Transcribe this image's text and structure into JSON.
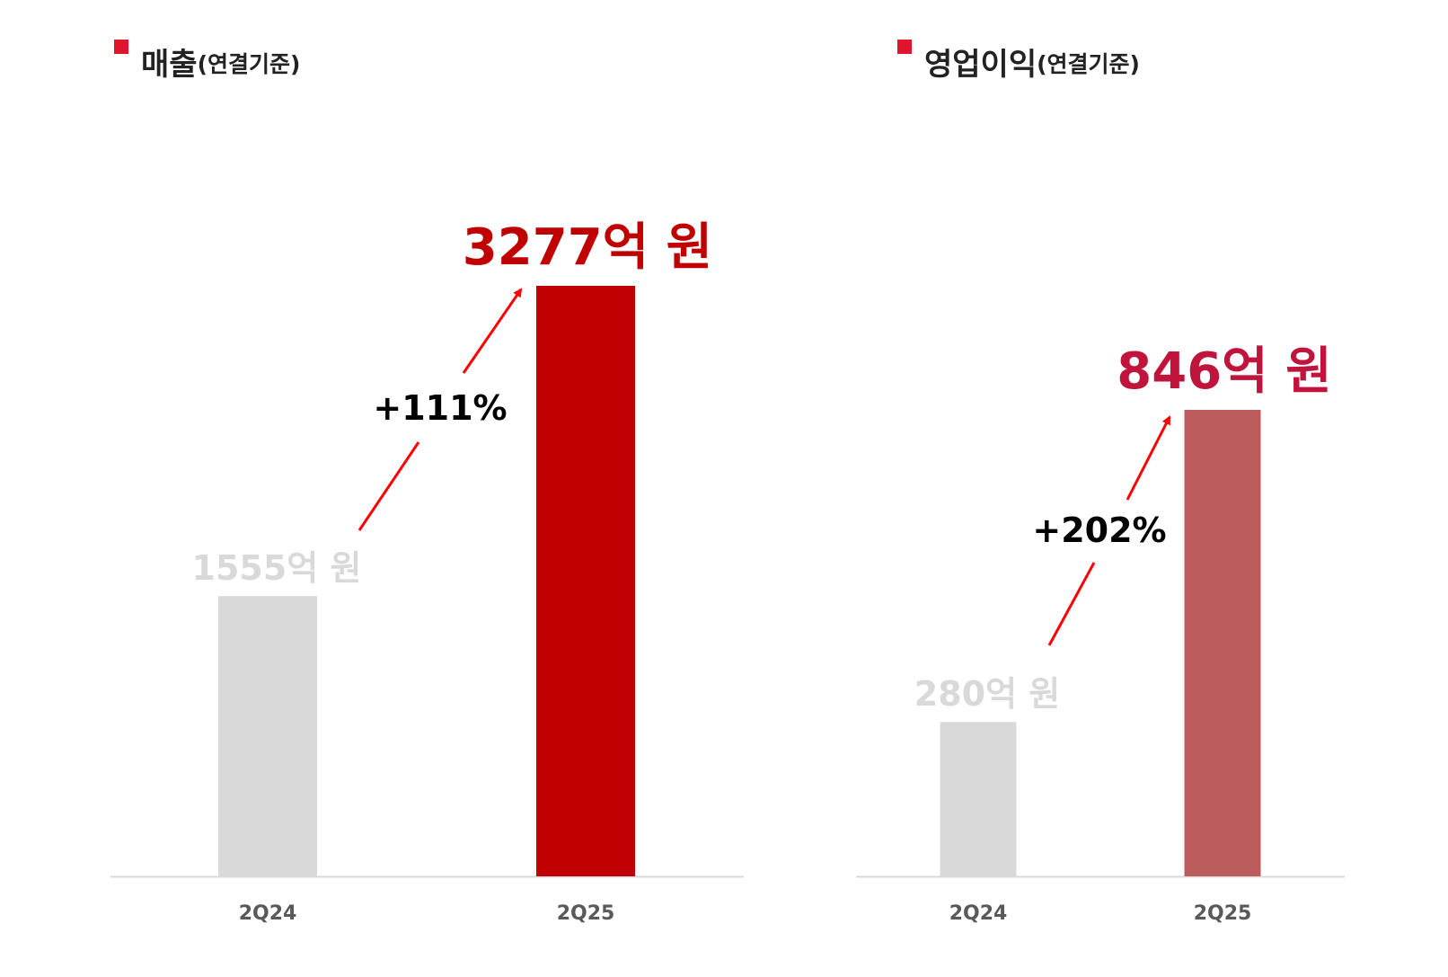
{
  "chart_data": [
    {
      "type": "bar",
      "title": "매출",
      "subtitle": "(연결기준)",
      "categories": [
        "2Q24",
        "2Q25"
      ],
      "values": [
        1555,
        3277
      ],
      "value_labels": [
        "1555억 원",
        "3277억 원"
      ],
      "change_label": "+111%",
      "bar_colors": [
        "#d9d9d9",
        "#c00000"
      ],
      "value_label_colors": [
        "#d9d9d9",
        "#c00000"
      ],
      "ylim": [
        0,
        3277
      ],
      "grid": false,
      "legend": "none"
    },
    {
      "type": "bar",
      "title": "영업이익",
      "subtitle": "(연결기준)",
      "categories": [
        "2Q24",
        "2Q25"
      ],
      "values": [
        280,
        846
      ],
      "value_labels": [
        "280억 원",
        "846억 원"
      ],
      "change_label": "+202%",
      "bar_colors": [
        "#d9d9d9",
        "#bd5c5c"
      ],
      "value_label_colors": [
        "#d9d9d9",
        "#c0143c"
      ],
      "ylim": [
        0,
        846
      ],
      "grid": false,
      "legend": "none"
    }
  ],
  "colors": {
    "title_marker": "#e0142c",
    "arrow": "#ff0000",
    "axis_line": "#d9d9d9",
    "tick_label": "#595959",
    "change_label": "#000000"
  }
}
